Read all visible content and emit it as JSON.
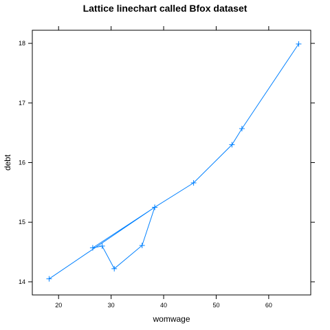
{
  "chart_data": {
    "type": "line",
    "title": "Lattice linechart called Bfox dataset",
    "xlabel": "womwage",
    "ylabel": "debt",
    "xlim": [
      15,
      68
    ],
    "ylim": [
      13.78,
      18.22
    ],
    "x_ticks": [
      20,
      30,
      40,
      50,
      60
    ],
    "y_ticks": [
      14,
      15,
      16,
      17,
      18
    ],
    "grid": false,
    "marker": "+",
    "line_color": "#0080ff",
    "points": [
      {
        "x": 18.2,
        "y": 14.05
      },
      {
        "x": 38.3,
        "y": 15.25
      },
      {
        "x": 26.5,
        "y": 14.57
      },
      {
        "x": 28.3,
        "y": 14.6
      },
      {
        "x": 30.6,
        "y": 14.22
      },
      {
        "x": 35.9,
        "y": 14.61
      },
      {
        "x": 38.3,
        "y": 15.25
      },
      {
        "x": 45.7,
        "y": 15.66
      },
      {
        "x": 53.0,
        "y": 16.3
      },
      {
        "x": 54.9,
        "y": 16.57
      },
      {
        "x": 65.7,
        "y": 17.99
      }
    ]
  }
}
